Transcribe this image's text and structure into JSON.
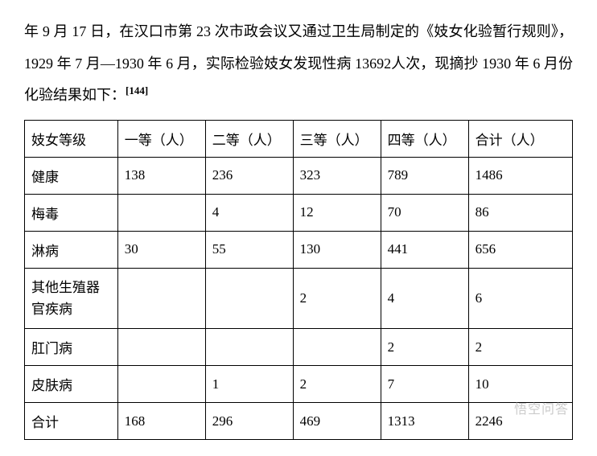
{
  "paragraph": {
    "text_part1": "年 9 月 17 日，在汉口市第 23 次市政会议又通过卫生局制定的《妓女化验暂行规则》，1929 年 7 月—1930 年 6 月，实际检验妓女发现性病 13692人次，现摘抄 1930 年 6 月份化验结果如下：",
    "citation": "[144]"
  },
  "table": {
    "columns": [
      "妓女等级",
      "一等（人）",
      "二等（人）",
      "三等（人）",
      "四等（人）",
      "合计（人）"
    ],
    "rows": [
      [
        "健康",
        "138",
        "236",
        "323",
        "789",
        "1486"
      ],
      [
        "梅毒",
        "",
        "4",
        "12",
        "70",
        "86"
      ],
      [
        "淋病",
        "30",
        "55",
        "130",
        "441",
        "656"
      ],
      [
        "其他生殖器官疾病",
        "",
        "",
        "2",
        "4",
        "6"
      ],
      [
        "肛门病",
        "",
        "",
        "",
        "2",
        "2"
      ],
      [
        "皮肤病",
        "",
        "1",
        "2",
        "7",
        "10"
      ],
      [
        "合计",
        "168",
        "296",
        "469",
        "1313",
        "2246"
      ]
    ],
    "border_color": "#000000",
    "background_color": "#ffffff",
    "font_size": 17,
    "header_font_size": 17
  },
  "watermark": "悟空问答",
  "styles": {
    "body_bg": "#ffffff",
    "text_color": "#000000",
    "paragraph_font_size": 18,
    "paragraph_line_height": 2.2
  }
}
